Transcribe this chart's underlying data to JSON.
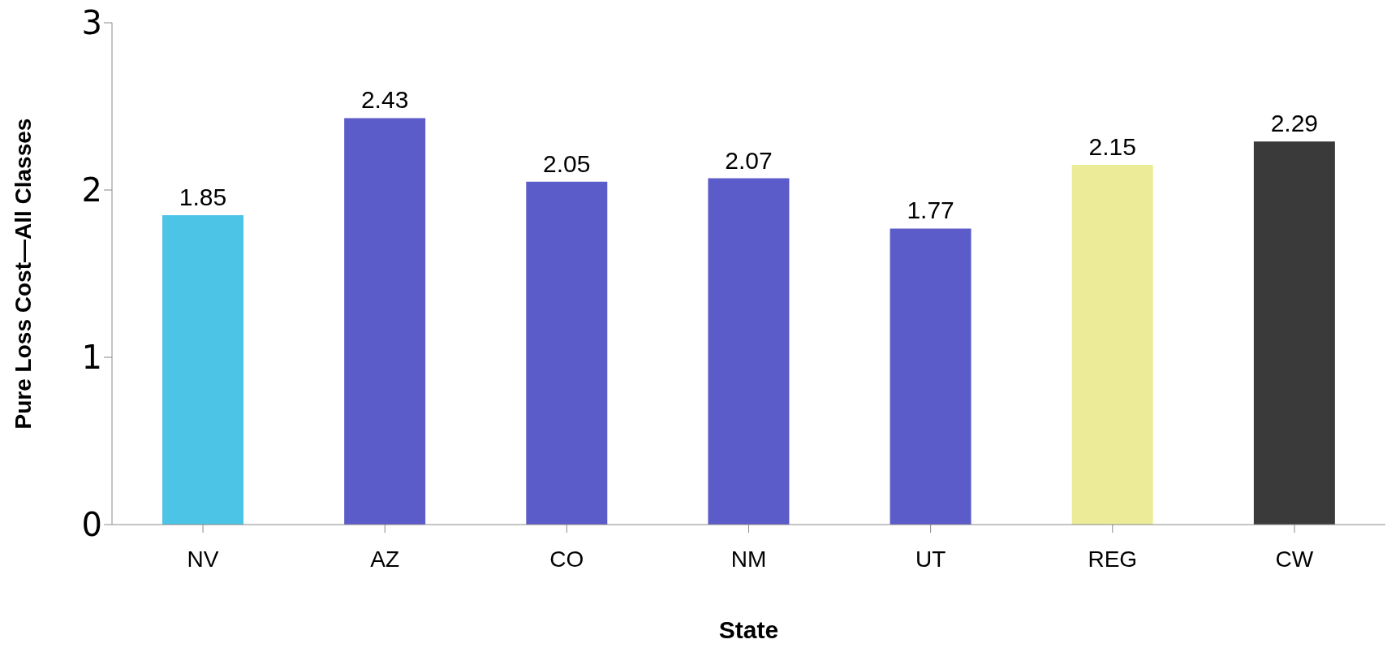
{
  "chart_data": {
    "type": "bar",
    "xlabel": "State",
    "ylabel": "Pure Loss Cost—All Classes",
    "categories": [
      "NV",
      "AZ",
      "CO",
      "NM",
      "UT",
      "REG",
      "CW"
    ],
    "values": [
      1.85,
      2.43,
      2.05,
      2.07,
      1.77,
      2.15,
      2.29
    ],
    "colors": [
      "#4cc4e6",
      "#5b5bc9",
      "#5b5bc9",
      "#5b5bc9",
      "#5b5bc9",
      "#ecec98",
      "#3a3a3a"
    ],
    "ylim": [
      0,
      3
    ],
    "yticks": [
      0,
      1,
      2,
      3
    ],
    "grid": false,
    "legend": false,
    "data_labels": true
  }
}
